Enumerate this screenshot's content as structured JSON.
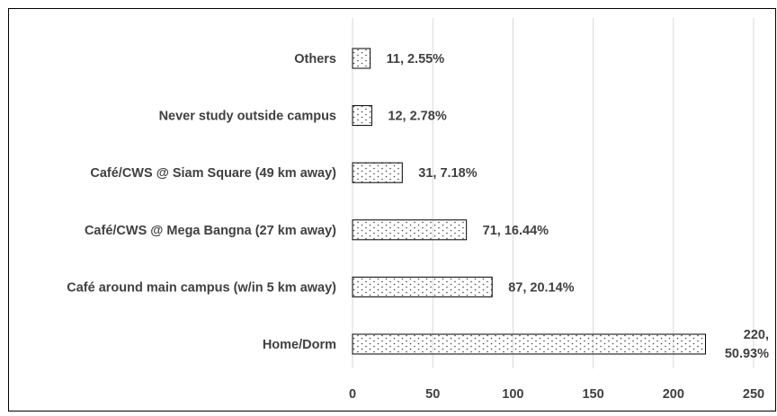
{
  "chart_data": {
    "type": "bar",
    "orientation": "horizontal",
    "title": "",
    "xlabel": "",
    "ylabel": "",
    "categories": [
      "Home/Dorm",
      "Café around main campus (w/in 5 km away)",
      "Café/CWS @ Mega Bangna (27 km away)",
      "Café/CWS @ Siam Square (49 km away)",
      "Never study outside campus",
      "Others"
    ],
    "values": [
      220,
      87,
      71,
      31,
      12,
      11
    ],
    "data_labels": [
      [
        "220,",
        "50.93%"
      ],
      [
        "87, 20.14%"
      ],
      [
        "71, 16.44%"
      ],
      [
        "31, 7.18%"
      ],
      [
        "12, 2.78%"
      ],
      [
        "11, 2.55%"
      ]
    ],
    "xlim": [
      0,
      250
    ],
    "x_ticks": [
      "0",
      "50",
      "100",
      "150",
      "200",
      "250"
    ],
    "x_tick_values": [
      0,
      50,
      100,
      150,
      200,
      250
    ],
    "grid": "vertical",
    "legend": "none",
    "bar_fill": "dotted pattern",
    "colors": {
      "bar_outline": "#000000",
      "dots": "#444444",
      "grid": "#d9d9d9",
      "text": "#404040",
      "frame": "#000000"
    }
  }
}
